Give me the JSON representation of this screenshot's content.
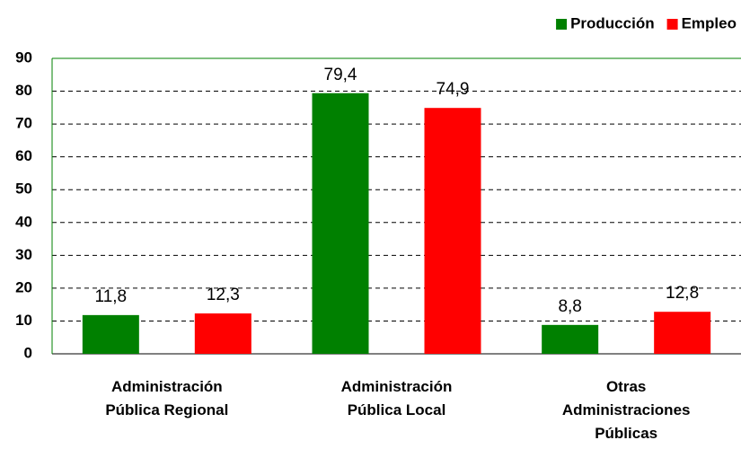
{
  "chart_data": {
    "type": "bar",
    "categories": [
      "Administración Pública Regional",
      "Administración Pública Local",
      "Otras Administraciones Públicas"
    ],
    "series": [
      {
        "name": "Producción",
        "color": "#008000",
        "values": [
          11.8,
          79.4,
          8.8
        ],
        "value_labels": [
          "11,8",
          "79,4",
          "8,8"
        ]
      },
      {
        "name": "Empleo",
        "color": "#ff0000",
        "values": [
          12.3,
          74.9,
          12.8
        ],
        "value_labels": [
          "12,3",
          "74,9",
          "12,8"
        ]
      }
    ],
    "ylim": [
      0,
      90
    ],
    "yticks": [
      0,
      10,
      20,
      30,
      40,
      50,
      60,
      70,
      80,
      90
    ],
    "grid": true,
    "legend": "top-right"
  }
}
